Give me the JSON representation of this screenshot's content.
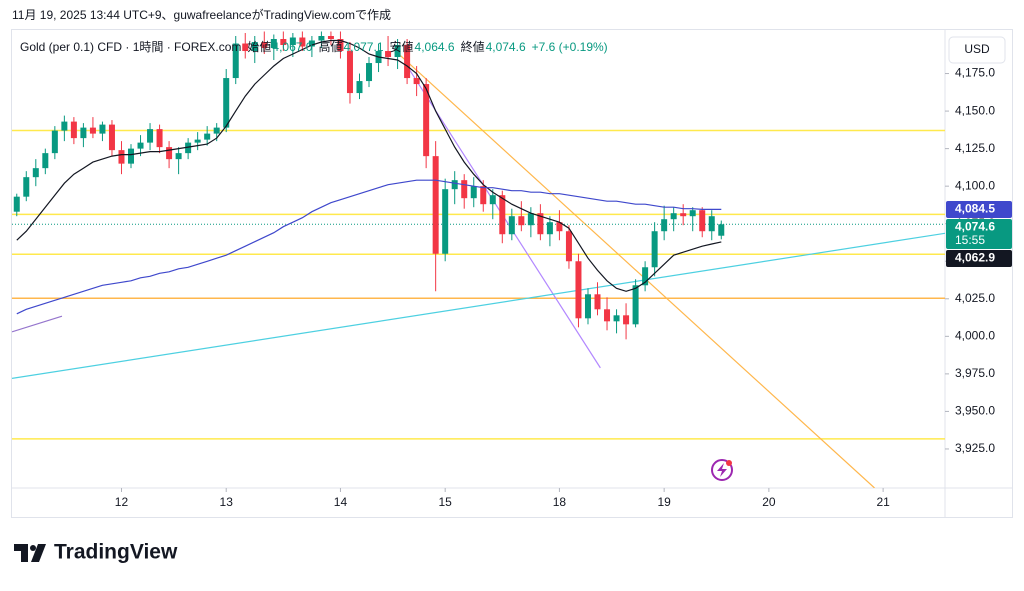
{
  "chart_data": {
    "type": "candlestick",
    "header": "11月 19, 2025 13:44 UTC+9、guwafreelanceがTradingView.comで作成",
    "title": "Gold (per 0.1) CFD · 1時間 · FOREX.com",
    "ohlc_legend": [
      {
        "label": "始値",
        "value": "4,067.0"
      },
      {
        "label": "高値",
        "value": "4,077.1"
      },
      {
        "label": "安値",
        "value": "4,064.6"
      },
      {
        "label": "終値",
        "value": "4,074.6"
      }
    ],
    "change": "+7.6 (+0.19%)",
    "currency": "USD",
    "brand": "TradingView",
    "up_color": "#089981",
    "down_color": "#f23645",
    "ylim": [
      3899,
      4204
    ],
    "yticks": [
      {
        "value": 3925,
        "label": "3,925.0"
      },
      {
        "value": 3950,
        "label": "3,950.0"
      },
      {
        "value": 3975,
        "label": "3,975.0"
      },
      {
        "value": 4000,
        "label": "4,000.0"
      },
      {
        "value": 4025,
        "label": "4,025.0"
      },
      {
        "value": 4050,
        "label": "4,050.0"
      },
      {
        "value": 4075,
        "label": "4,075.0"
      },
      {
        "value": 4100,
        "label": "4,100.0"
      },
      {
        "value": 4125,
        "label": "4,125.0"
      },
      {
        "value": 4150,
        "label": "4,150.0"
      },
      {
        "value": 4175,
        "label": "4,175.0"
      }
    ],
    "categories": [
      null,
      null,
      null,
      null,
      null,
      null,
      null,
      null,
      null,
      null,
      null,
      "12",
      null,
      null,
      null,
      null,
      null,
      null,
      null,
      null,
      null,
      null,
      "13",
      null,
      null,
      null,
      null,
      null,
      null,
      null,
      null,
      null,
      null,
      null,
      "14",
      null,
      null,
      null,
      null,
      null,
      null,
      null,
      null,
      null,
      null,
      "15",
      null,
      null,
      null,
      null,
      null,
      null,
      null,
      null,
      null,
      null,
      null,
      "18",
      null,
      null,
      null,
      null,
      null,
      null,
      null,
      null,
      null,
      null,
      "19",
      null,
      null,
      null,
      null,
      null,
      null,
      null,
      null,
      null,
      null,
      "20",
      null,
      null,
      null,
      null,
      null,
      null,
      null,
      null,
      null,
      null,
      null,
      "21",
      null,
      null,
      null,
      null,
      null,
      null
    ],
    "open": [
      4083,
      4093,
      4106,
      4112,
      4122,
      4137,
      4143,
      4132,
      4139,
      4135,
      4141,
      4124,
      4115,
      4125,
      4129,
      4138,
      4126,
      4118,
      4122,
      4129,
      4131,
      4135,
      4139,
      4172,
      4195,
      4190,
      4196,
      4192,
      4198,
      4194,
      4199,
      4193,
      4197,
      4200,
      4198,
      4190,
      4162,
      4170,
      4182,
      4190,
      4186,
      4194,
      4172,
      4168,
      4120,
      4055,
      4098,
      4104,
      4092,
      4100,
      4088,
      4094,
      4068,
      4080,
      4074,
      4082,
      4068,
      4076,
      4070,
      4050,
      4012,
      4028,
      4018,
      4010,
      4014,
      4008,
      4034,
      4046,
      4070,
      4078,
      4082,
      4080,
      4084,
      4070,
      4067,
      null,
      null,
      null,
      null,
      null,
      null,
      null,
      null,
      null,
      null,
      null,
      null,
      null,
      null,
      null,
      null,
      null,
      null,
      null,
      null,
      null,
      null,
      null
    ],
    "high": [
      4095,
      4110,
      4118,
      4125,
      4140,
      4147,
      4146,
      4142,
      4146,
      4143,
      4144,
      4130,
      4128,
      4134,
      4142,
      4141,
      4130,
      4126,
      4132,
      4136,
      4140,
      4142,
      4178,
      4200,
      4202,
      4200,
      4203,
      4201,
      4203,
      4202,
      4203,
      4200,
      4203,
      4203,
      4203,
      4196,
      4175,
      4186,
      4195,
      4200,
      4198,
      4198,
      4180,
      4172,
      4130,
      4105,
      4110,
      4108,
      4106,
      4104,
      4098,
      4097,
      4085,
      4090,
      4086,
      4088,
      4080,
      4084,
      4074,
      4055,
      4032,
      4036,
      4026,
      4018,
      4022,
      4038,
      4050,
      4076,
      4087,
      4086,
      4088,
      4086,
      4086,
      4084,
      4077.1,
      null,
      null,
      null,
      null,
      null,
      null,
      null,
      null,
      null,
      null,
      null,
      null,
      null,
      null,
      null,
      null,
      null,
      null,
      null,
      null,
      null,
      null,
      null
    ],
    "low": [
      4080,
      4090,
      4100,
      4108,
      4118,
      4130,
      4128,
      4126,
      4132,
      4130,
      4120,
      4108,
      4112,
      4120,
      4124,
      4122,
      4112,
      4108,
      4118,
      4124,
      4127,
      4130,
      4136,
      4168,
      4185,
      4182,
      4188,
      4184,
      4190,
      4186,
      4190,
      4186,
      4192,
      4194,
      4185,
      4155,
      4158,
      4166,
      4176,
      4180,
      4178,
      4168,
      4160,
      4112,
      4030,
      4050,
      4088,
      4085,
      4086,
      4083,
      4078,
      4062,
      4064,
      4070,
      4066,
      4064,
      4060,
      4064,
      4045,
      4006,
      4008,
      4014,
      4004,
      4002,
      3998,
      4006,
      4030,
      4040,
      4064,
      4070,
      4074,
      4070,
      4066,
      4064,
      4064.6,
      null,
      null,
      null,
      null,
      null,
      null,
      null,
      null,
      null,
      null,
      null,
      null,
      null,
      null,
      null,
      null,
      null,
      null,
      null,
      null,
      null,
      null,
      null
    ],
    "close": [
      4093,
      4106,
      4112,
      4122,
      4137,
      4143,
      4132,
      4139,
      4135,
      4141,
      4124,
      4115,
      4125,
      4129,
      4138,
      4126,
      4118,
      4122,
      4129,
      4131,
      4135,
      4139,
      4172,
      4195,
      4190,
      4196,
      4192,
      4198,
      4194,
      4199,
      4193,
      4197,
      4200,
      4198,
      4190,
      4162,
      4170,
      4182,
      4190,
      4186,
      4194,
      4172,
      4168,
      4120,
      4055,
      4098,
      4104,
      4092,
      4100,
      4088,
      4094,
      4068,
      4080,
      4074,
      4082,
      4068,
      4076,
      4070,
      4050,
      4012,
      4028,
      4018,
      4010,
      4014,
      4008,
      4034,
      4046,
      4070,
      4078,
      4082,
      4080,
      4084,
      4070,
      4080,
      4074.6,
      null,
      null,
      null,
      null,
      null,
      null,
      null,
      null,
      null,
      null,
      null,
      null,
      null,
      null,
      null,
      null,
      null,
      null,
      null,
      null,
      null,
      null,
      null
    ],
    "overlays": [
      {
        "color": "#131722",
        "values": [
          4064,
          4070,
          4078,
          4086,
          4094,
          4102,
          4108,
          4112,
          4116,
          4118,
          4120,
          4121,
          4121,
          4122,
          4123,
          4123,
          4124,
          4125,
          4126,
          4127,
          4128,
          4132,
          4140,
          4150,
          4160,
          4168,
          4174,
          4180,
          4185,
          4188,
          4191,
          4194,
          4196,
          4197,
          4197,
          4195,
          4192,
          4188,
          4186,
          4185,
          4184,
          4180,
          4175,
          4165,
          4150,
          4138,
          4126,
          4116,
          4108,
          4101,
          4096,
          4092,
          4088,
          4085,
          4082,
          4080,
          4078,
          4076,
          4072,
          4062,
          4052,
          4044,
          4037,
          4032,
          4030,
          4032,
          4036,
          4042,
          4048,
          4054,
          4056,
          4058,
          4060,
          4061.5,
          4062.9,
          null,
          null,
          null,
          null,
          null,
          null,
          null,
          null,
          null,
          null,
          null,
          null,
          null,
          null,
          null,
          null,
          null,
          null,
          null,
          null,
          null,
          null,
          null
        ]
      },
      {
        "color": "#3f48cc",
        "values": [
          4015,
          4018,
          4020,
          4022,
          4024,
          4026,
          4028,
          4030,
          4032,
          4034,
          4035,
          4036,
          4037,
          4039,
          4040,
          4042,
          4043,
          4045,
          4046,
          4048,
          4050,
          4052,
          4054,
          4057,
          4060,
          4063,
          4066,
          4069,
          4073,
          4076,
          4079,
          4083,
          4086,
          4089,
          4091,
          4093,
          4095,
          4097,
          4099,
          4101,
          4102,
          4103,
          4104,
          4104,
          4104,
          4103,
          4102,
          4101,
          4100,
          4099,
          4099,
          4098,
          4097,
          4097,
          4096,
          4096,
          4095,
          4095,
          4094,
          4093,
          4092,
          4091,
          4090,
          4090,
          4089,
          4088,
          4088,
          4087,
          4086,
          4086,
          4085,
          4085,
          4084.5,
          4084.5,
          4084.5,
          null,
          null,
          null,
          null,
          null,
          null,
          null,
          null,
          null,
          null,
          null,
          null,
          null,
          null,
          null,
          null,
          null,
          null,
          null,
          null,
          null,
          null,
          null
        ]
      }
    ],
    "levels": [
      {
        "value": 4137.1,
        "color": "#ffe94d"
      },
      {
        "value": 4081.2,
        "color": "#ffe94d"
      },
      {
        "value": 4054.7,
        "color": "#ffe94d"
      },
      {
        "value": 4025.4,
        "color": "#ffb74d"
      },
      {
        "value": 3931.7,
        "color": "#ffe94d"
      }
    ],
    "trendlines": [
      {
        "color": "#ffb74d",
        "x": [
          40.3,
          90.1
        ],
        "y": [
          4187,
          3899
        ]
      },
      {
        "color": "#b388ff",
        "x": [
          40.8,
          61.3
        ],
        "y": [
          4182,
          3979
        ]
      },
      {
        "color": "#4dd0e1",
        "x": [
          -0.5,
          97.5
        ],
        "y": [
          3972,
          4068.6
        ]
      },
      {
        "color": "#9575cd",
        "x": [
          -0.5,
          4.75
        ],
        "y": [
          4003,
          4013.4
        ]
      }
    ],
    "price_labels": [
      {
        "value": 4084.5,
        "label": "4,084.5",
        "color": "#3f48cc"
      },
      {
        "value": 4074.6,
        "label": "4,074.6",
        "sub": "15:55",
        "color": "#089981"
      },
      {
        "value": 4062.9,
        "label": "4,062.9",
        "color": "#131722"
      }
    ]
  }
}
